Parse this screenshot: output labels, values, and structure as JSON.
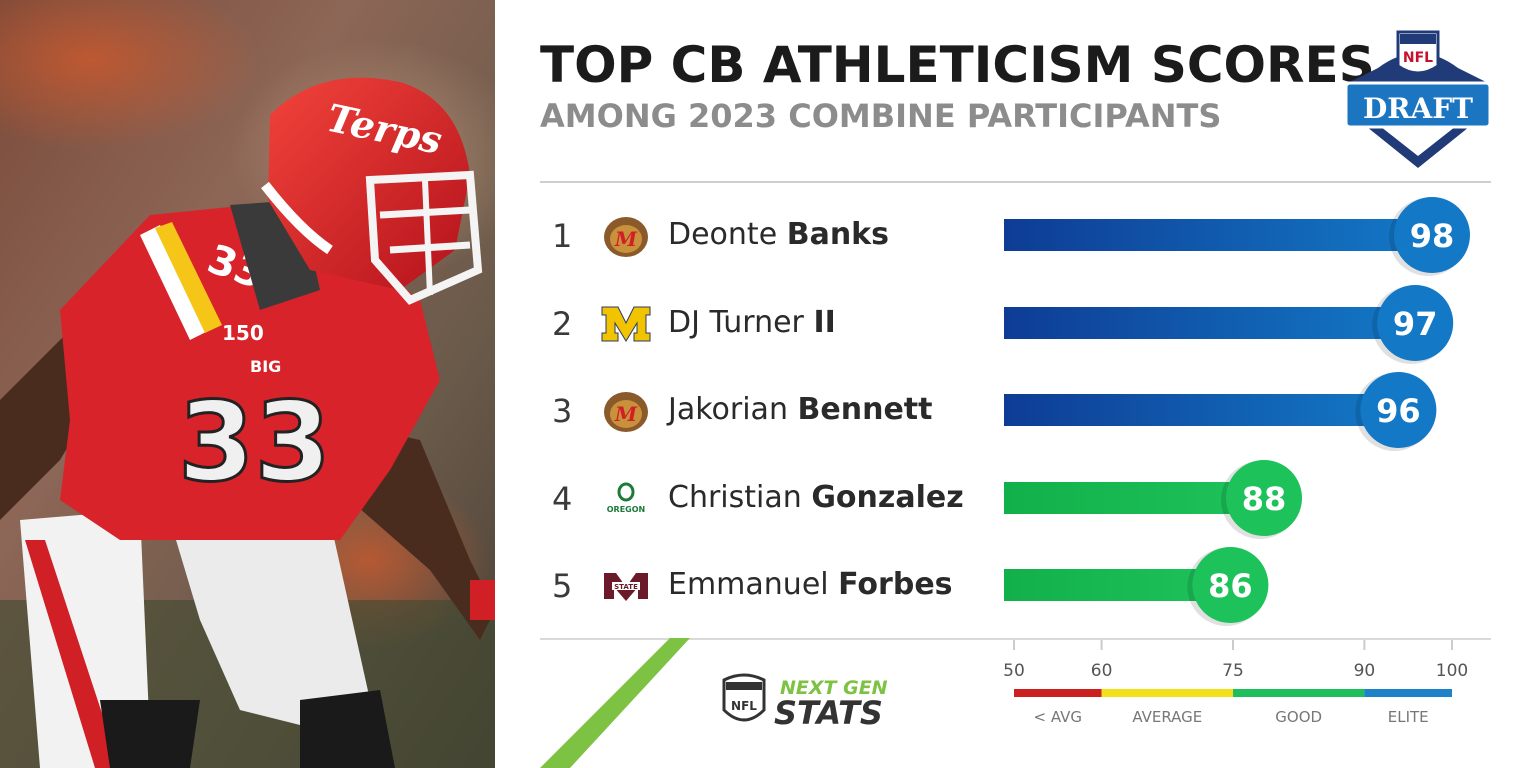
{
  "title": "TOP CB ATHLETICISM SCORES",
  "subtitle": "AMONG 2023 COMBINE PARTICIPANTS",
  "draft_logo": {
    "shield_text": "NFL",
    "banner_text": "DRAFT"
  },
  "photo": {
    "helmet_text": "Terps",
    "jersey_number": "33",
    "patch_text": "150",
    "conference_text": "BIG"
  },
  "branding": {
    "line1": "NEXT GEN",
    "line2": "STATS",
    "shield_text": "NFL"
  },
  "chart_data": {
    "type": "bar",
    "orientation": "horizontal",
    "title": "TOP CB ATHLETICISM SCORES",
    "subtitle": "AMONG 2023 COMBINE PARTICIPANTS",
    "xlim": [
      50,
      100
    ],
    "players": [
      {
        "rank": "1",
        "first": "Deonte",
        "last": "Banks",
        "school_logo": "maryland-terrapin",
        "score": 98,
        "tier": "elite"
      },
      {
        "rank": "2",
        "first": "DJ Turner",
        "last": "II",
        "school_logo": "michigan-block-m",
        "score": 97,
        "tier": "elite"
      },
      {
        "rank": "3",
        "first": "Jakorian",
        "last": "Bennett",
        "school_logo": "maryland-terrapin",
        "score": 96,
        "tier": "elite"
      },
      {
        "rank": "4",
        "first": "Christian",
        "last": "Gonzalez",
        "school_logo": "oregon",
        "score": 88,
        "tier": "good"
      },
      {
        "rank": "5",
        "first": "Emmanuel",
        "last": "Forbes",
        "school_logo": "mississippi-state",
        "score": 86,
        "tier": "good"
      }
    ],
    "scale": {
      "ticks": [
        50,
        60,
        75,
        90,
        100
      ],
      "bands": [
        {
          "from": 50,
          "to": 60,
          "label": "< AVG",
          "color": "#cc1f1f"
        },
        {
          "from": 60,
          "to": 75,
          "label": "AVERAGE",
          "color": "#f3e01b"
        },
        {
          "from": 75,
          "to": 90,
          "label": "GOOD",
          "color": "#1fbe5c"
        },
        {
          "from": 90,
          "to": 100,
          "label": "ELITE",
          "color": "#1f82c8"
        }
      ]
    },
    "colors": {
      "elite": "#1379c6",
      "elite_bar_start": "#0e3c95",
      "good": "#1ec25b",
      "good_bar_start": "#12b04a"
    }
  }
}
